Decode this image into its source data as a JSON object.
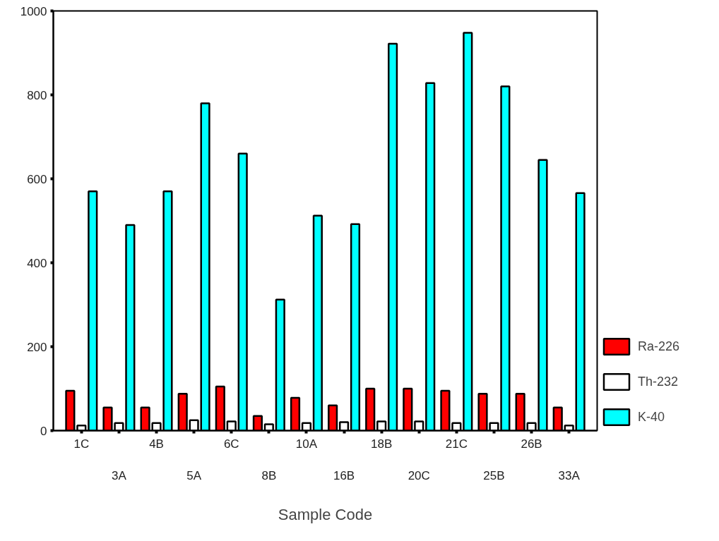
{
  "chart_data": {
    "type": "bar",
    "xlabel": "Sample Code",
    "categories": [
      "1C",
      "3A",
      "4B",
      "5A",
      "6C",
      "8B",
      "10A",
      "16B",
      "18B",
      "20C",
      "21C",
      "25B",
      "26B",
      "33A"
    ],
    "series": [
      {
        "name": "Ra-226",
        "color": "#ff0000",
        "values": [
          95,
          55,
          55,
          88,
          105,
          35,
          78,
          60,
          100,
          100,
          95,
          88,
          88,
          55
        ]
      },
      {
        "name": "Th-232",
        "color": "#ffffff",
        "values": [
          12,
          18,
          18,
          25,
          22,
          15,
          18,
          20,
          22,
          22,
          18,
          18,
          18,
          12
        ]
      },
      {
        "name": "K-40",
        "color": "#00ffff",
        "values": [
          570,
          490,
          570,
          780,
          660,
          312,
          512,
          492,
          922,
          828,
          948,
          820,
          645,
          566
        ]
      }
    ],
    "ylim": [
      0,
      1000
    ],
    "yticks": [
      0,
      200,
      400,
      600,
      800,
      1000
    ],
    "grid": false,
    "legend": "right"
  }
}
